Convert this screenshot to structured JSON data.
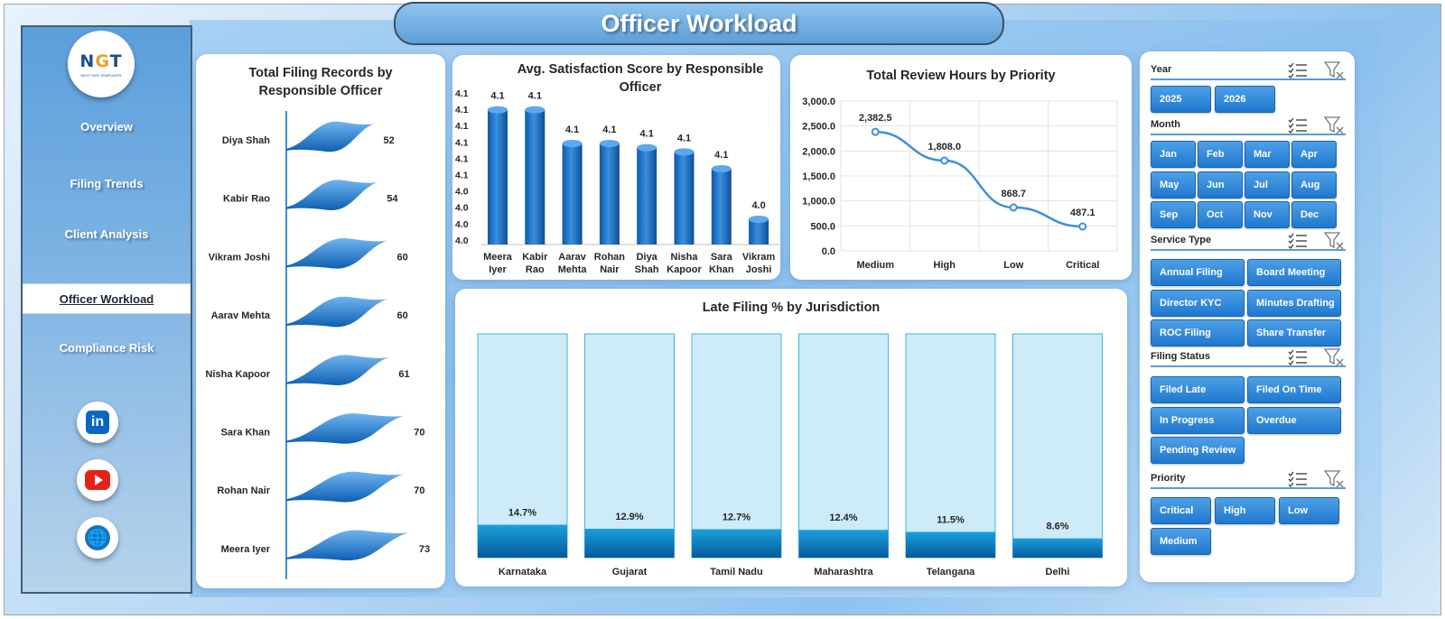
{
  "title": "Officer Workload",
  "logo": {
    "main_left": "N",
    "main_mid": "G",
    "main_right": "T",
    "sub": "NEXT GEN TEMPLATES"
  },
  "nav": [
    {
      "label": "Overview"
    },
    {
      "label": "Filing Trends"
    },
    {
      "label": "Client Analysis"
    },
    {
      "label": "Officer Workload"
    },
    {
      "label": "Compliance Risk"
    }
  ],
  "social": {
    "linkedin_glyph": "in"
  },
  "chart_filing": {
    "title_line1": "Total Filing Records by",
    "title_line2": "Responsible Officer"
  },
  "chart_satisfaction": {
    "title_line1": "Avg. Satisfaction Score by Responsible",
    "title_line2": "Officer"
  },
  "chart_review": {
    "title": "Total Review Hours by Priority"
  },
  "chart_late": {
    "title": "Late Filing % by Jurisdiction"
  },
  "slicers": {
    "year": {
      "label": "Year",
      "items": [
        "2025",
        "2026"
      ]
    },
    "month": {
      "label": "Month",
      "items": [
        "Jan",
        "Feb",
        "Mar",
        "Apr",
        "May",
        "Jun",
        "Jul",
        "Aug",
        "Sep",
        "Oct",
        "Nov",
        "Dec"
      ]
    },
    "service": {
      "label": "Service Type",
      "items": [
        "Annual Filing",
        "Board Meeting",
        "Director KYC",
        "Minutes Drafting",
        "ROC Filing",
        "Share Transfer"
      ]
    },
    "status": {
      "label": "Filing Status",
      "items": [
        "Filed Late",
        "Filed On Time",
        "In Progress",
        "Overdue",
        "Pending Review"
      ]
    },
    "priority": {
      "label": "Priority",
      "items": [
        "Critical",
        "High",
        "Low",
        "Medium"
      ]
    }
  },
  "colors": {
    "accent": "#1f78cf",
    "bar_dark": "#0c5aa6",
    "bar_light": "#cdebf9",
    "line": "#3d8fd6"
  },
  "chart_data": [
    {
      "type": "bar",
      "orientation": "horizontal",
      "categories": [
        "Diya Shah",
        "Kabir Rao",
        "Vikram Joshi",
        "Aarav Mehta",
        "Nisha Kapoor",
        "Sara Khan",
        "Rohan Nair",
        "Meera Iyer"
      ],
      "values": [
        52,
        54,
        60,
        60,
        61,
        70,
        70,
        73
      ],
      "title": "Total Filing Records by Responsible Officer",
      "data_labels": [
        "52",
        "54",
        "60",
        "60",
        "61",
        "70",
        "70",
        "73"
      ]
    },
    {
      "type": "bar",
      "categories": [
        "Meera Iyer",
        "Kabir Rao",
        "Aarav Mehta",
        "Rohan Nair",
        "Diya Shah",
        "Nisha Kapoor",
        "Sara Khan",
        "Vikram Joshi"
      ],
      "category_lines": [
        [
          "Meera",
          "Iyer"
        ],
        [
          "Kabir",
          "Rao"
        ],
        [
          "Aarav",
          "Mehta"
        ],
        [
          "Rohan",
          "Nair"
        ],
        [
          "Diya",
          "Shah"
        ],
        [
          "Nisha",
          "Kapoor"
        ],
        [
          "Sara",
          "Khan"
        ],
        [
          "Vikram",
          "Joshi"
        ]
      ],
      "values": [
        4.13,
        4.13,
        4.09,
        4.09,
        4.085,
        4.08,
        4.06,
        4.0
      ],
      "data_labels": [
        "4.1",
        "4.1",
        "4.1",
        "4.1",
        "4.1",
        "4.1",
        "4.1",
        "4.0"
      ],
      "yticks": [
        "4.1",
        "4.1",
        "4.1",
        "4.1",
        "4.1",
        "4.1",
        "4.0",
        "4.0",
        "4.0",
        "4.0"
      ],
      "ylim": [
        3.97,
        4.15
      ],
      "title": "Avg. Satisfaction Score by Responsible Officer"
    },
    {
      "type": "line",
      "categories": [
        "Medium",
        "High",
        "Low",
        "Critical"
      ],
      "values": [
        2382.5,
        1808.0,
        868.7,
        487.1
      ],
      "data_labels": [
        "2,382.5",
        "1,808.0",
        "868.7",
        "487.1"
      ],
      "yticks": [
        "3,000.0",
        "2,500.0",
        "2,000.0",
        "1,500.0",
        "1,000.0",
        "500.0",
        "0.0"
      ],
      "ylim": [
        0,
        3000
      ],
      "grid": true,
      "title": "Total Review Hours by Priority"
    },
    {
      "type": "bar",
      "stacked": true,
      "categories": [
        "Karnataka",
        "Gujarat",
        "Tamil Nadu",
        "Maharashtra",
        "Telangana",
        "Delhi"
      ],
      "values": [
        14.7,
        12.9,
        12.7,
        12.4,
        11.5,
        8.6
      ],
      "data_labels": [
        "14.7%",
        "12.9%",
        "12.7%",
        "12.4%",
        "11.5%",
        "8.6%"
      ],
      "ylim": [
        0,
        100
      ],
      "title": "Late Filing % by Jurisdiction"
    }
  ]
}
